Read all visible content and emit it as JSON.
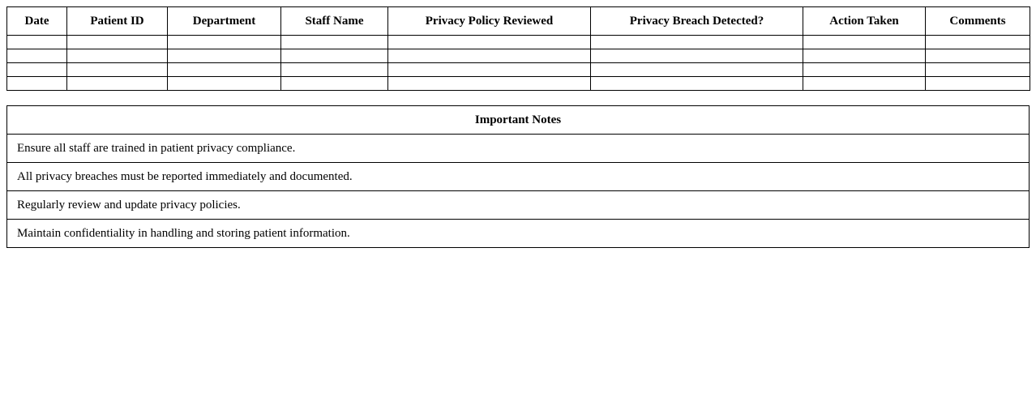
{
  "log_table": {
    "headers": [
      "Date",
      "Patient ID",
      "Department",
      "Staff Name",
      "Privacy Policy Reviewed",
      "Privacy Breach Detected?",
      "Action Taken",
      "Comments"
    ],
    "rows": [
      [
        "",
        "",
        "",
        "",
        "",
        "",
        "",
        ""
      ],
      [
        "",
        "",
        "",
        "",
        "",
        "",
        "",
        ""
      ],
      [
        "",
        "",
        "",
        "",
        "",
        "",
        "",
        ""
      ],
      [
        "",
        "",
        "",
        "",
        "",
        "",
        "",
        ""
      ]
    ]
  },
  "notes": {
    "title": "Important Notes",
    "items": [
      "Ensure all staff are trained in patient privacy compliance.",
      "All privacy breaches must be reported immediately and documented.",
      "Regularly review and update privacy policies.",
      "Maintain confidentiality in handling and storing patient information."
    ]
  }
}
